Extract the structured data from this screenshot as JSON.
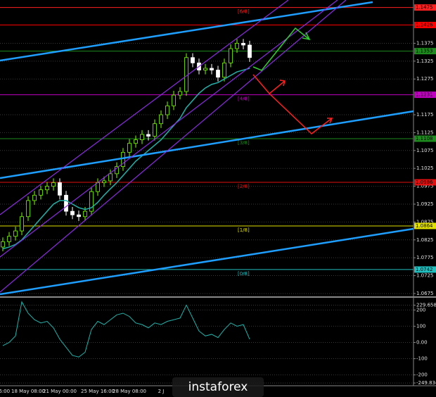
{
  "chart_data": [
    {
      "type": "candlestick",
      "categories": [
        "16:00",
        null,
        null,
        null,
        "18 May 08:00",
        null,
        null,
        null,
        null,
        "21 May 00:00",
        null,
        null,
        null,
        null,
        null,
        "25 May 16:00",
        null,
        null,
        null,
        null,
        "28 May 08:00",
        null,
        null,
        null,
        null,
        "2 J",
        null,
        null,
        null,
        null,
        null,
        null,
        null,
        null,
        null,
        null,
        null,
        null,
        null,
        null
      ],
      "open": [
        1.0805,
        1.082,
        1.0835,
        1.085,
        1.089,
        1.0935,
        1.095,
        1.0965,
        1.0975,
        1.0985,
        1.095,
        1.0905,
        1.0895,
        1.089,
        1.0905,
        1.096,
        1.0985,
        1.099,
        1.101,
        1.103,
        1.107,
        1.1095,
        1.1105,
        1.112,
        1.1115,
        1.115,
        1.1175,
        1.12,
        1.123,
        1.124,
        1.1335,
        1.132,
        1.13,
        1.1305,
        1.13,
        1.128,
        1.132,
        1.136,
        1.1375,
        1.137
      ],
      "high": [
        1.0832,
        1.0847,
        1.0862,
        1.0902,
        1.0947,
        1.0962,
        1.0977,
        1.0987,
        1.0997,
        1.0997,
        1.0962,
        1.0917,
        1.0907,
        1.0917,
        1.0972,
        1.0997,
        1.1002,
        1.1022,
        1.1042,
        1.1082,
        1.1107,
        1.1117,
        1.1132,
        1.1132,
        1.1162,
        1.1187,
        1.1212,
        1.1242,
        1.1252,
        1.1347,
        1.1347,
        1.1332,
        1.1317,
        1.1317,
        1.1312,
        1.1332,
        1.1372,
        1.1387,
        1.1387,
        1.1382
      ],
      "low": [
        1.0793,
        1.0808,
        1.0823,
        1.0838,
        1.0878,
        1.0923,
        1.0938,
        1.0953,
        1.0963,
        1.0938,
        1.0893,
        1.0883,
        1.0878,
        1.0878,
        1.0893,
        1.0948,
        1.0973,
        1.0978,
        1.0998,
        1.1018,
        1.1058,
        1.1083,
        1.1093,
        1.1103,
        1.1103,
        1.1138,
        1.1163,
        1.1188,
        1.1218,
        1.1228,
        1.1308,
        1.1288,
        1.1288,
        1.1288,
        1.1268,
        1.1268,
        1.1308,
        1.1348,
        1.1358,
        1.1323
      ],
      "close": [
        1.082,
        1.0835,
        1.085,
        1.089,
        1.0935,
        1.095,
        1.0965,
        1.0975,
        1.0985,
        1.095,
        1.0905,
        1.0895,
        1.089,
        1.0905,
        1.096,
        1.0985,
        1.099,
        1.101,
        1.103,
        1.107,
        1.1095,
        1.1105,
        1.112,
        1.1115,
        1.115,
        1.1175,
        1.12,
        1.123,
        1.124,
        1.1335,
        1.132,
        1.13,
        1.1305,
        1.13,
        1.128,
        1.132,
        1.136,
        1.1375,
        1.137,
        1.1335
      ],
      "up_color": "#7cfc00",
      "down_color": "#ffffff",
      "ma": {
        "color": "#20b2aa",
        "values": [
          1.08,
          1.0805,
          1.0812,
          1.0825,
          1.0845,
          1.0865,
          1.0885,
          1.0905,
          1.0925,
          1.0935,
          1.0935,
          1.0925,
          1.0915,
          1.091,
          1.0915,
          1.093,
          1.095,
          1.0968,
          1.0985,
          1.1005,
          1.1025,
          1.1045,
          1.106,
          1.1075,
          1.109,
          1.1105,
          1.1125,
          1.1145,
          1.1165,
          1.1195,
          1.1215,
          1.1235,
          1.125,
          1.126,
          1.1265,
          1.1275,
          1.1285,
          1.1295,
          1.13,
          1.1305
        ]
      },
      "levels": [
        {
          "name": "[6/8]",
          "value": 1.1475,
          "color": "#ff2020"
        },
        {
          "value": 1.1426,
          "color": "#ff0000"
        },
        {
          "value": 1.1353,
          "color": "#1e8b1e"
        },
        {
          "name": "[4/8]",
          "value": 1.1231,
          "color": "#c000c0"
        },
        {
          "name": "[3/8]",
          "value": 1.1108,
          "color": "#1e8b1e"
        },
        {
          "name": "[2/8]",
          "value": 1.0986,
          "color": "#e01010"
        },
        {
          "name": "[1/8]",
          "value": 1.0864,
          "color": "#e0e000"
        },
        {
          "name": "[0/8]",
          "value": 1.0742,
          "color": "#20c0c0"
        }
      ],
      "ylim": [
        1.0669,
        1.1496
      ],
      "yticks": [
        1.0675,
        1.0725,
        1.0775,
        1.0825,
        1.0875,
        1.0925,
        1.0975,
        1.1025,
        1.1075,
        1.1125,
        1.1175,
        1.1275,
        1.1325,
        1.1375
      ],
      "grid": true,
      "watermark": "instaforex"
    },
    {
      "type": "line",
      "values": [
        -20,
        0,
        40,
        250,
        180,
        140,
        120,
        130,
        90,
        20,
        -30,
        -80,
        -90,
        -60,
        80,
        130,
        110,
        140,
        170,
        180,
        160,
        120,
        110,
        90,
        120,
        110,
        130,
        140,
        150,
        230,
        150,
        70,
        40,
        50,
        30,
        80,
        120,
        100,
        110,
        20
      ],
      "color": "#20b2aa",
      "ylim": [
        -258,
        271
      ],
      "yticks": [
        229.6586,
        200,
        100,
        {
          "value": 0,
          "label": "0.00"
        },
        -100,
        -200,
        -249.834
      ],
      "grid": true
    }
  ]
}
